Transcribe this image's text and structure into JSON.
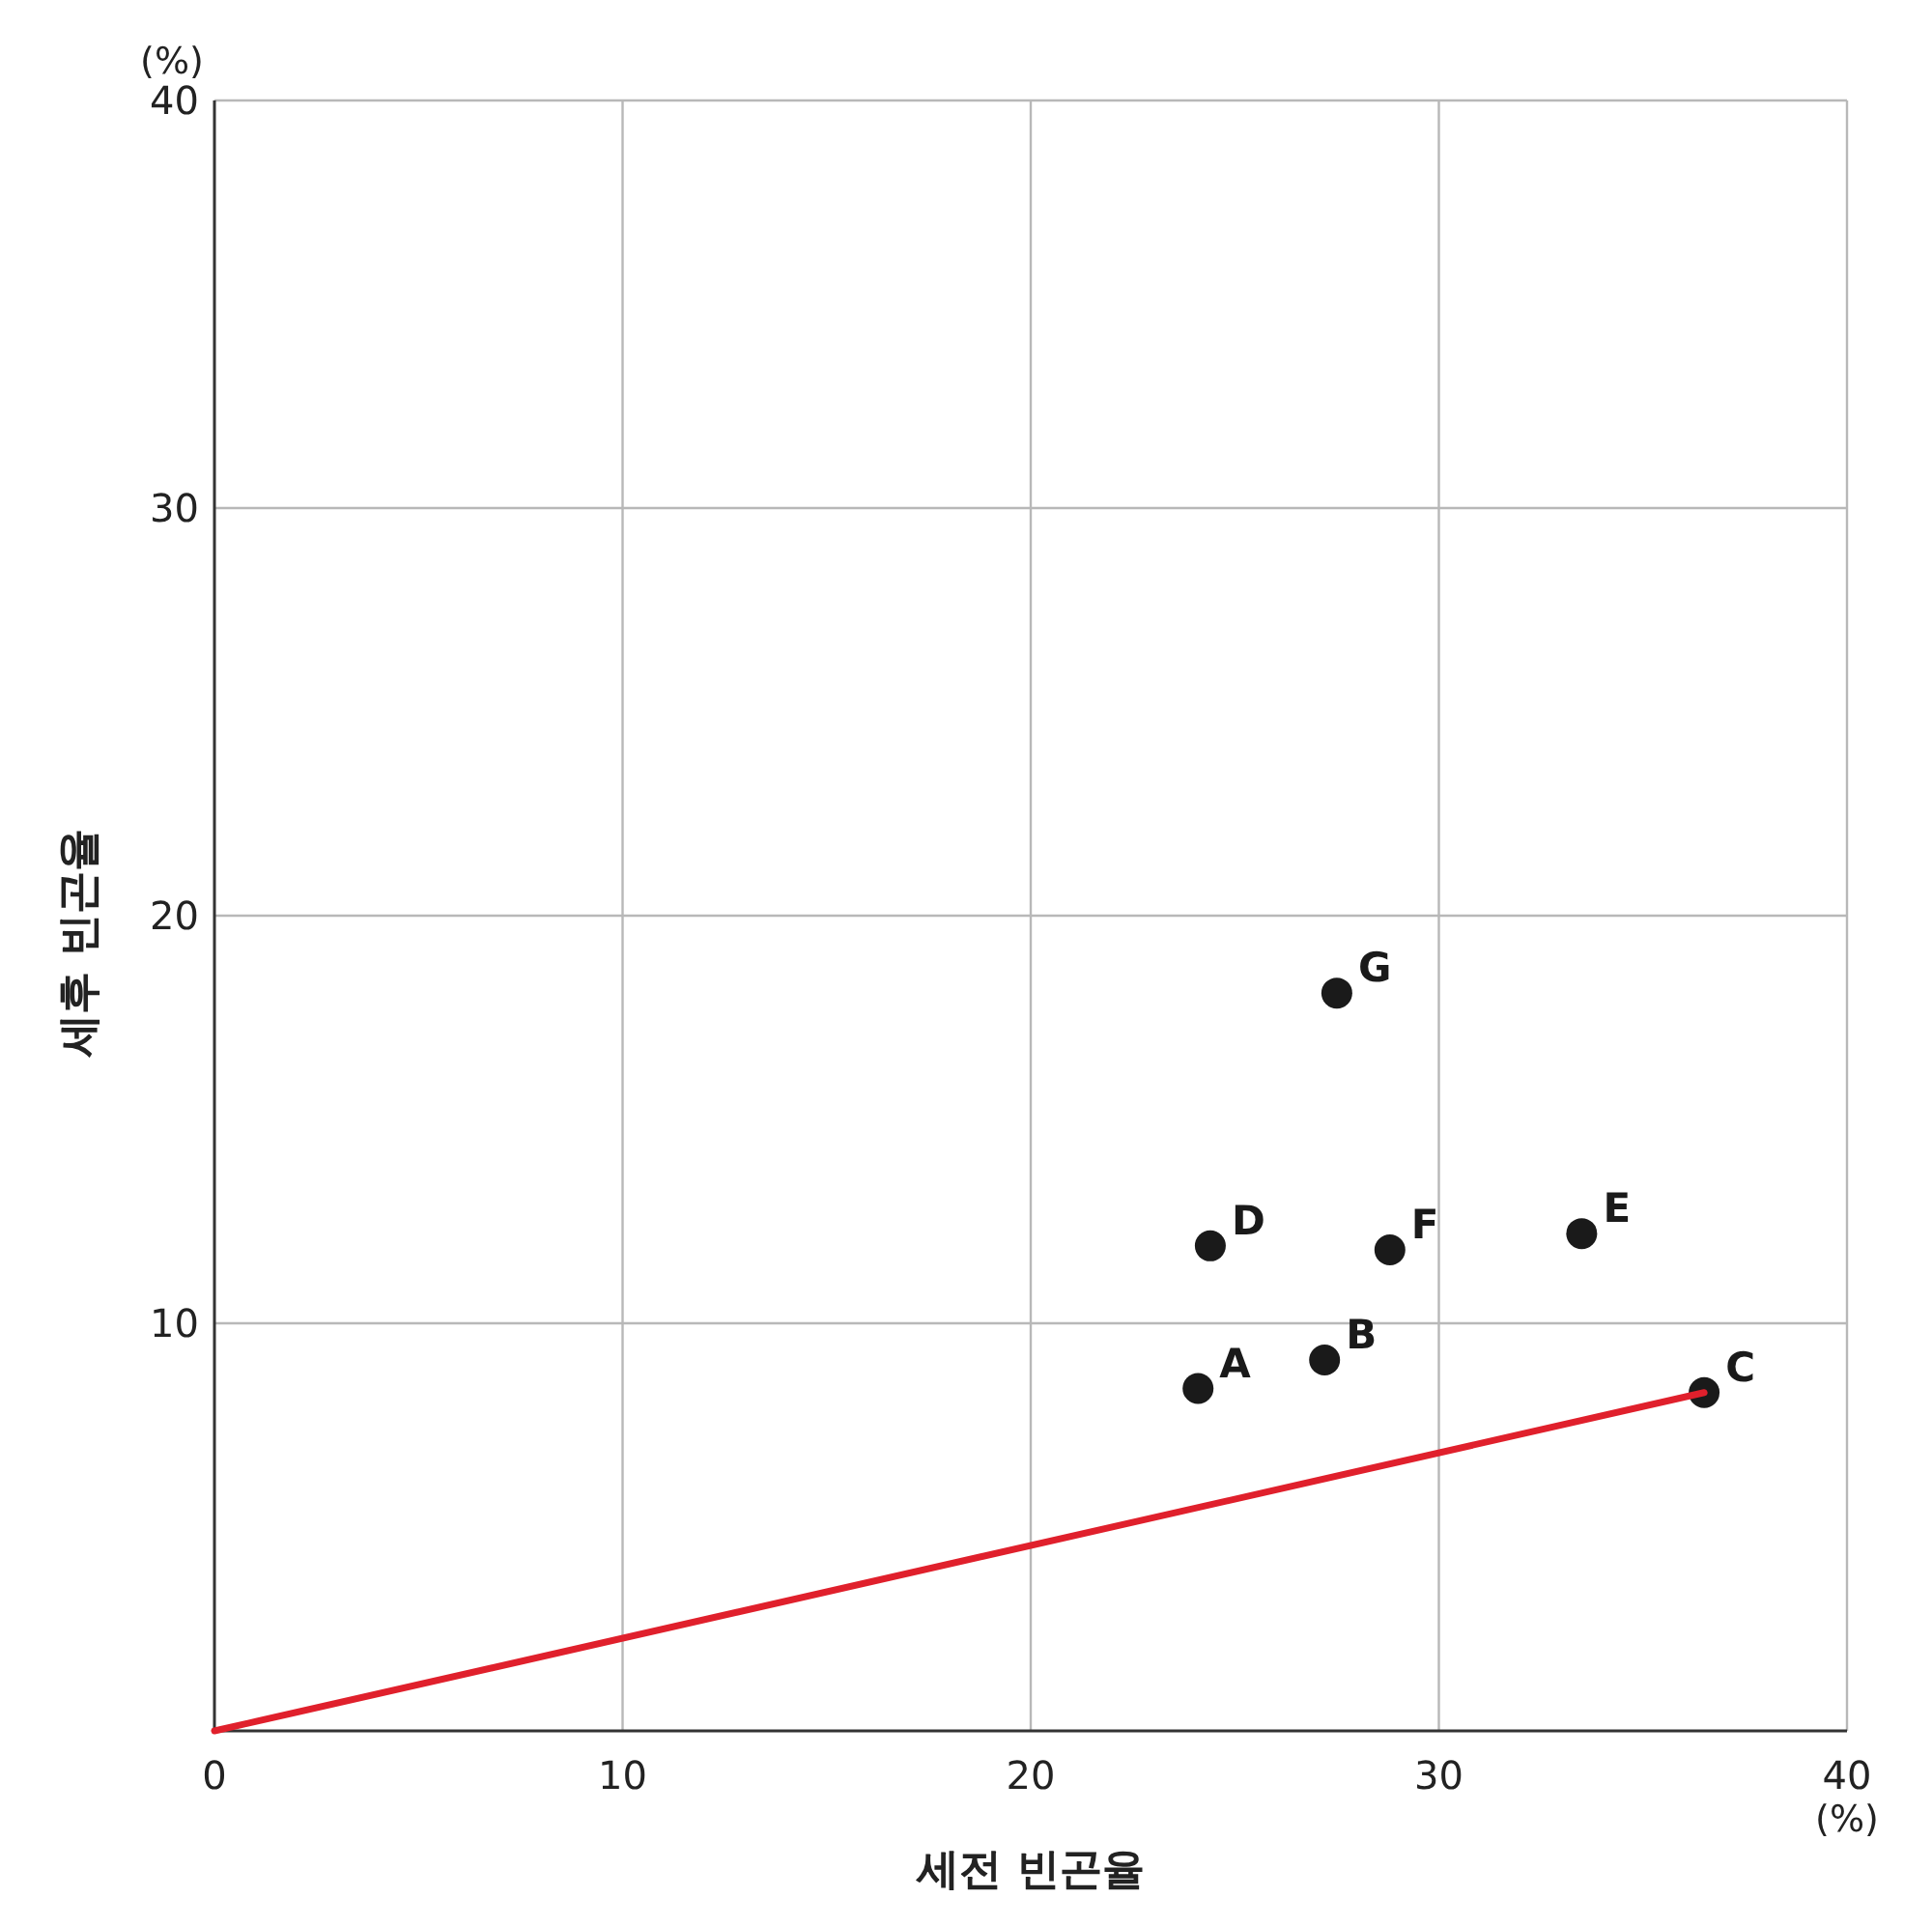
{
  "chart_data": {
    "type": "scatter",
    "xlabel": "세전 빈곤율",
    "ylabel": "세후 빈곤율",
    "annotations": [
      "(%)",
      "(%)",
      {
        "text": "A",
        "x": 24.1,
        "y": 8.4
      },
      {
        "text": "B",
        "x": 27.2,
        "y": 9.1
      },
      {
        "text": "C",
        "x": 36.5,
        "y": 8.3
      },
      {
        "text": "D",
        "x": 24.4,
        "y": 11.9
      },
      {
        "text": "E",
        "x": 33.5,
        "y": 12.2
      },
      {
        "text": "F",
        "x": 28.8,
        "y": 11.8
      },
      {
        "text": "G",
        "x": 27.5,
        "y": 18.1
      }
    ],
    "series": [
      {
        "color": "#1a1a1a",
        "marker": "circle",
        "x": [
          24.1,
          27.2,
          36.5,
          24.4,
          33.5,
          28.8,
          27.5
        ],
        "values": [
          8.4,
          9.1,
          8.3,
          11.9,
          12.2,
          11.8,
          18.1
        ]
      },
      {
        "type": "line",
        "color": "#e0202c",
        "x": [
          0,
          36.5
        ],
        "values": [
          0,
          8.3
        ]
      }
    ],
    "xlim": [
      0,
      40
    ],
    "ylim": [
      0,
      40
    ],
    "xticks": [
      0,
      10,
      20,
      30,
      40
    ],
    "yticks": [
      {
        "value": 0,
        "label": null
      },
      10,
      20,
      30,
      40
    ],
    "grid": true
  }
}
